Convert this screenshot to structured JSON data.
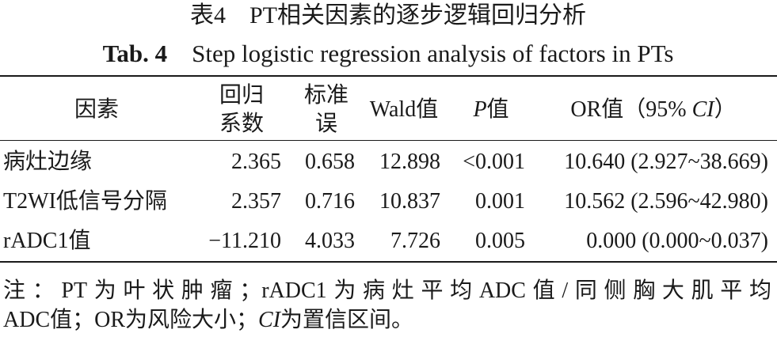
{
  "header": {
    "title_cn": "表4　PT相关因素的逐步逻辑回归分析",
    "title_en_label": "Tab. 4",
    "title_en": "Step logistic regression analysis of factors in PTs"
  },
  "table": {
    "columns": [
      [
        "因素"
      ],
      [
        "回归",
        "系数"
      ],
      [
        "标准",
        "误"
      ],
      [
        "Wald值"
      ],
      [
        "P",
        "值"
      ],
      [
        "OR值（95% ",
        "CI",
        "）"
      ]
    ],
    "rows": [
      [
        "病灶边缘",
        "2.365",
        "0.658",
        "12.898",
        "<0.001",
        "10.640 (2.927~38.669)"
      ],
      [
        "T2WI低信号分隔",
        "2.357",
        "0.716",
        "10.837",
        "0.001",
        "10.562 (2.596~42.980)"
      ],
      [
        "rADC1值",
        "−11.210",
        "4.033",
        "7.726",
        "0.005",
        "0.000 (0.000~0.037)"
      ]
    ]
  },
  "note": {
    "line1": "注：PT为叶状肿瘤；rADC1为病灶平均ADC值/同侧胸大肌平均",
    "line2": [
      "ADC值；OR为风险大小；",
      "CI",
      "为置信区间。"
    ]
  }
}
